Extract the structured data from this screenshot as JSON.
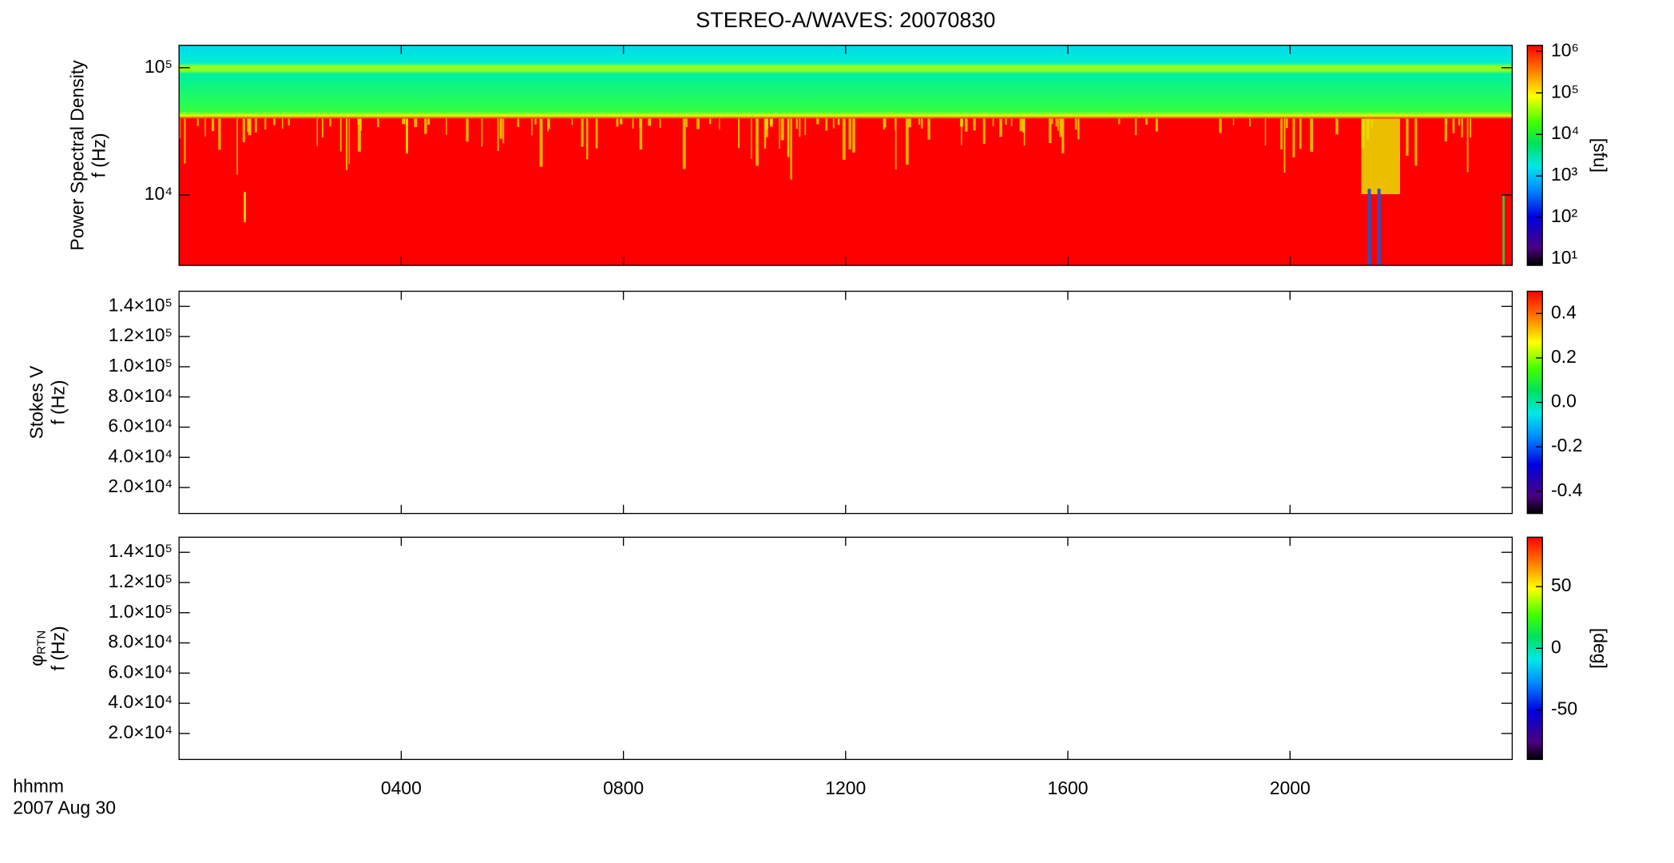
{
  "chart_data": [
    {
      "type": "spectrogram",
      "title": "STEREO-A/WAVES: 20070830",
      "ylabel": [
        "Power Spectral Density",
        "f (Hz)"
      ],
      "ylog": true,
      "ylim": [
        2800,
        150000
      ],
      "yticks": [
        {
          "value": 10000,
          "label": "10⁴"
        },
        {
          "value": 100000,
          "label": "10⁵"
        }
      ],
      "colorbar": {
        "label": "[sfu]",
        "log": true,
        "lim": [
          7,
          1400000
        ],
        "ticks": [
          {
            "value": 10,
            "label": "10¹"
          },
          {
            "value": 100,
            "label": "10²"
          },
          {
            "value": 1000,
            "label": "10³"
          },
          {
            "value": 10000,
            "label": "10⁴"
          },
          {
            "value": 100000,
            "label": "10⁵"
          },
          {
            "value": 1000000,
            "label": "10⁶"
          }
        ]
      }
    },
    {
      "type": "spectrogram",
      "ylabel": [
        "Stokes V",
        "f (Hz)"
      ],
      "ylog": false,
      "ylim": [
        2800,
        150000
      ],
      "yticks": [
        {
          "value": 20000,
          "label": "2.0×10⁴"
        },
        {
          "value": 40000,
          "label": "4.0×10⁴"
        },
        {
          "value": 60000,
          "label": "6.0×10⁴"
        },
        {
          "value": 80000,
          "label": "8.0×10⁴"
        },
        {
          "value": 100000,
          "label": "1.0×10⁵"
        },
        {
          "value": 120000,
          "label": "1.2×10⁵"
        },
        {
          "value": 140000,
          "label": "1.4×10⁵"
        }
      ],
      "colorbar": {
        "log": false,
        "lim": [
          -0.5,
          0.5
        ],
        "ticks": [
          -0.4,
          -0.2,
          {
            "value": 0,
            "label": "0.0"
          },
          0.2,
          0.4
        ]
      }
    },
    {
      "type": "spectrogram",
      "ylabel": [
        "φ",
        "f (Hz)"
      ],
      "ylabel_subscript": "RTN",
      "ylog": false,
      "ylim": [
        2800,
        150000
      ],
      "yticks": [
        {
          "value": 20000,
          "label": "2.0×10⁴"
        },
        {
          "value": 40000,
          "label": "4.0×10⁴"
        },
        {
          "value": 60000,
          "label": "6.0×10⁴"
        },
        {
          "value": 80000,
          "label": "8.0×10⁴"
        },
        {
          "value": 100000,
          "label": "1.0×10⁵"
        },
        {
          "value": 120000,
          "label": "1.2×10⁵"
        },
        {
          "value": 140000,
          "label": "1.4×10⁵"
        }
      ],
      "colorbar": {
        "label": "[deg]",
        "log": false,
        "lim": [
          -90,
          90
        ],
        "ticks": [
          -50,
          0,
          50
        ]
      },
      "xlim": [
        0,
        24
      ],
      "xticks": [
        {
          "value": 4,
          "label": "0400"
        },
        {
          "value": 8,
          "label": "0800"
        },
        {
          "value": 12,
          "label": "1200"
        },
        {
          "value": 16,
          "label": "1600"
        },
        {
          "value": 20,
          "label": "2000"
        }
      ],
      "x_label": "hhmm",
      "x_date": "2007 Aug 30"
    }
  ]
}
